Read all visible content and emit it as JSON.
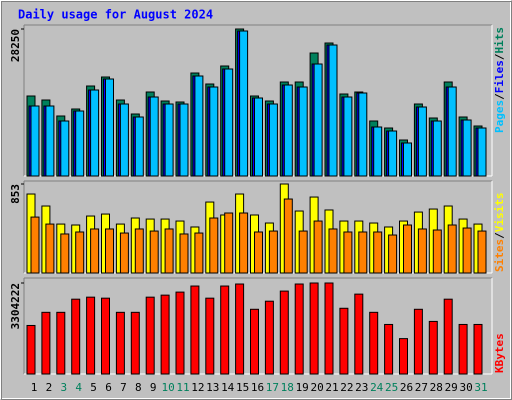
{
  "title": "Daily usage for August 2024",
  "categories": [
    "1",
    "2",
    "3",
    "4",
    "5",
    "6",
    "7",
    "8",
    "9",
    "10",
    "11",
    "12",
    "13",
    "14",
    "15",
    "16",
    "17",
    "18",
    "19",
    "20",
    "21",
    "22",
    "23",
    "24",
    "25",
    "26",
    "27",
    "28",
    "29",
    "30",
    "31"
  ],
  "weekend_categories": [
    "3",
    "4",
    "10",
    "11",
    "17",
    "18",
    "24",
    "25",
    "31"
  ],
  "weekend_color": "#00805c",
  "legend_separator": "/",
  "chart_data": [
    {
      "type": "bar",
      "ylim": [
        0,
        28250
      ],
      "yticks": [
        28250
      ],
      "series": [
        {
          "name": "Hits",
          "color": "#00805c",
          "values": [
            15374,
            14605,
            11531,
            12875,
            17296,
            19025,
            14605,
            11914,
            16142,
            14413,
            14220,
            19793,
            17680,
            21139,
            28250,
            15374,
            14413,
            18064,
            18064,
            23637,
            25558,
            15758,
            16142,
            10569,
            9224,
            6918,
            13836,
            11146,
            18064,
            11338,
            9609
          ]
        },
        {
          "name": "Files",
          "color": "#0000ff",
          "values": [
            13452,
            13452,
            10569,
            12491,
            16527,
            18641,
            13836,
            11338,
            15181,
            13836,
            13836,
            19217,
            17103,
            20563,
            27866,
            14990,
            13836,
            17488,
            17103,
            21523,
            25174,
            15181,
            15950,
            9417,
            8648,
            6342,
            13260,
            10569,
            17103,
            10762,
            9224
          ]
        },
        {
          "name": "Pages",
          "color": "#00c0ff",
          "values": [
            13452,
            13452,
            10569,
            12491,
            16527,
            18641,
            13836,
            11338,
            15181,
            13836,
            13836,
            19217,
            17103,
            20563,
            27866,
            14990,
            13836,
            17488,
            17103,
            21523,
            25174,
            15181,
            15950,
            9417,
            8648,
            6342,
            13260,
            10569,
            17103,
            10762,
            9224
          ]
        }
      ]
    },
    {
      "type": "bar",
      "ylim": [
        0,
        853
      ],
      "yticks": [
        853
      ],
      "series": [
        {
          "name": "Visits",
          "color": "#ffff00",
          "values": [
            757,
            642,
            469,
            460,
            546,
            565,
            469,
            527,
            517,
            517,
            498,
            441,
            680,
            556,
            757,
            556,
            479,
            853,
            594,
            728,
            604,
            498,
            498,
            479,
            441,
            498,
            584,
            613,
            642,
            517,
            469
          ]
        },
        {
          "name": "Sites",
          "color": "#ff8000",
          "values": [
            536,
            469,
            374,
            393,
            422,
            422,
            383,
            422,
            402,
            422,
            374,
            383,
            527,
            575,
            575,
            393,
            402,
            709,
            402,
            498,
            422,
            393,
            393,
            393,
            364,
            460,
            422,
            412,
            460,
            431,
            402
          ]
        }
      ]
    },
    {
      "type": "bar",
      "ylim": [
        0,
        3304222
      ],
      "yticks": [
        3304222
      ],
      "series": [
        {
          "name": "KBytes",
          "color": "#ff0000",
          "values": [
            1762272,
            2239554,
            2239554,
            2716836,
            2790264,
            2753550,
            2239554,
            2239554,
            2790264,
            2863692,
            2973834,
            3194118,
            2753550,
            3194118,
            3267546,
            2349696,
            2643408,
            3010548,
            3267546,
            3304222,
            3304222,
            2386410,
            2900406,
            2239554,
            1798986,
            1284990,
            2349696,
            1909128,
            2716836,
            1798986,
            1798986
          ]
        }
      ]
    }
  ]
}
